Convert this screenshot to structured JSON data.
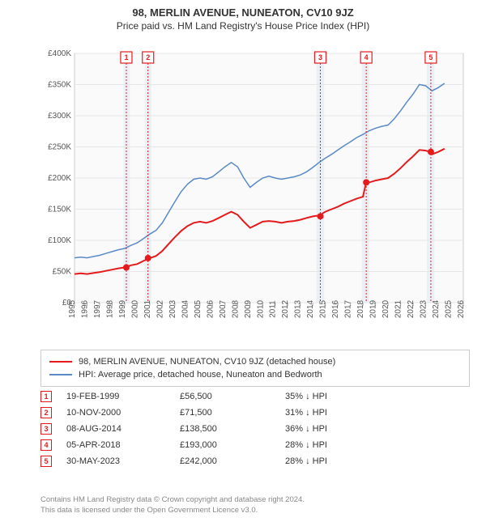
{
  "header": {
    "title": "98, MERLIN AVENUE, NUNEATON, CV10 9JZ",
    "subtitle": "Price paid vs. HM Land Registry's House Price Index (HPI)"
  },
  "chart": {
    "type": "line",
    "plot_bg": "#fafafa",
    "grid_color": "#e6e6e6",
    "axis_color": "#aaaaaa",
    "x": {
      "min": 1995,
      "max": 2026,
      "ticks": [
        1995,
        1996,
        1997,
        1998,
        1999,
        2000,
        2001,
        2002,
        2003,
        2004,
        2005,
        2006,
        2007,
        2008,
        2009,
        2010,
        2011,
        2012,
        2013,
        2014,
        2015,
        2016,
        2017,
        2018,
        2019,
        2020,
        2021,
        2022,
        2023,
        2024,
        2025,
        2026
      ]
    },
    "y": {
      "min": 0,
      "max": 400000,
      "ticks": [
        0,
        50000,
        100000,
        150000,
        200000,
        250000,
        300000,
        350000,
        400000
      ],
      "labels": [
        "£0",
        "£50K",
        "£100K",
        "£150K",
        "£200K",
        "£250K",
        "£300K",
        "£350K",
        "£400K"
      ]
    },
    "band_color": "#d9e6f2",
    "band_opacity": 0.5,
    "bands": [
      {
        "from": 1998.9,
        "to": 1999.4
      },
      {
        "from": 2000.6,
        "to": 2001.1
      },
      {
        "from": 2014.3,
        "to": 2014.9
      },
      {
        "from": 2017.9,
        "to": 2018.5
      },
      {
        "from": 2023.1,
        "to": 2023.7
      }
    ],
    "series": [
      {
        "name": "hpi",
        "label": "HPI: Average price, detached house, Nuneaton and Bedworth",
        "color": "#5a8ac6",
        "width": 1.5,
        "data": [
          [
            1995,
            72000
          ],
          [
            1995.5,
            73000
          ],
          [
            1996,
            72000
          ],
          [
            1996.5,
            74000
          ],
          [
            1997,
            76000
          ],
          [
            1997.5,
            79000
          ],
          [
            1998,
            82000
          ],
          [
            1998.5,
            85000
          ],
          [
            1999,
            87000
          ],
          [
            1999.5,
            92000
          ],
          [
            2000,
            96000
          ],
          [
            2000.5,
            103000
          ],
          [
            2001,
            110000
          ],
          [
            2001.5,
            116000
          ],
          [
            2002,
            128000
          ],
          [
            2002.5,
            145000
          ],
          [
            2003,
            162000
          ],
          [
            2003.5,
            178000
          ],
          [
            2004,
            190000
          ],
          [
            2004.5,
            198000
          ],
          [
            2005,
            200000
          ],
          [
            2005.5,
            198000
          ],
          [
            2006,
            202000
          ],
          [
            2006.5,
            210000
          ],
          [
            2007,
            218000
          ],
          [
            2007.5,
            225000
          ],
          [
            2008,
            218000
          ],
          [
            2008.5,
            200000
          ],
          [
            2009,
            185000
          ],
          [
            2009.5,
            193000
          ],
          [
            2010,
            200000
          ],
          [
            2010.5,
            203000
          ],
          [
            2011,
            200000
          ],
          [
            2011.5,
            198000
          ],
          [
            2012,
            200000
          ],
          [
            2012.5,
            202000
          ],
          [
            2013,
            205000
          ],
          [
            2013.5,
            210000
          ],
          [
            2014,
            217000
          ],
          [
            2014.5,
            225000
          ],
          [
            2015,
            232000
          ],
          [
            2015.5,
            238000
          ],
          [
            2016,
            245000
          ],
          [
            2016.5,
            252000
          ],
          [
            2017,
            258000
          ],
          [
            2017.5,
            265000
          ],
          [
            2018,
            270000
          ],
          [
            2018.5,
            276000
          ],
          [
            2019,
            280000
          ],
          [
            2019.5,
            283000
          ],
          [
            2020,
            285000
          ],
          [
            2020.5,
            295000
          ],
          [
            2021,
            308000
          ],
          [
            2021.5,
            322000
          ],
          [
            2022,
            335000
          ],
          [
            2022.5,
            350000
          ],
          [
            2023,
            348000
          ],
          [
            2023.5,
            340000
          ],
          [
            2024,
            345000
          ],
          [
            2024.5,
            352000
          ]
        ]
      },
      {
        "name": "price",
        "label": "98, MERLIN AVENUE, NUNEATON, CV10 9JZ (detached house)",
        "color": "#e41a1c",
        "width": 2,
        "data": [
          [
            1995,
            46000
          ],
          [
            1995.5,
            47000
          ],
          [
            1996,
            46000
          ],
          [
            1996.5,
            47500
          ],
          [
            1997,
            49000
          ],
          [
            1997.5,
            51000
          ],
          [
            1998,
            53000
          ],
          [
            1998.5,
            55000
          ],
          [
            1999,
            56500
          ],
          [
            1999.5,
            60000
          ],
          [
            2000,
            62000
          ],
          [
            2000.5,
            67000
          ],
          [
            2001,
            71500
          ],
          [
            2001.5,
            75000
          ],
          [
            2002,
            83000
          ],
          [
            2002.5,
            94000
          ],
          [
            2003,
            105000
          ],
          [
            2003.5,
            115000
          ],
          [
            2004,
            123000
          ],
          [
            2004.5,
            128000
          ],
          [
            2005,
            130000
          ],
          [
            2005.5,
            128000
          ],
          [
            2006,
            131000
          ],
          [
            2006.5,
            136000
          ],
          [
            2007,
            141000
          ],
          [
            2007.5,
            146000
          ],
          [
            2008,
            141000
          ],
          [
            2008.5,
            130000
          ],
          [
            2009,
            120000
          ],
          [
            2009.5,
            125000
          ],
          [
            2010,
            130000
          ],
          [
            2010.5,
            131000
          ],
          [
            2011,
            130000
          ],
          [
            2011.5,
            128000
          ],
          [
            2012,
            130000
          ],
          [
            2012.5,
            131000
          ],
          [
            2013,
            133000
          ],
          [
            2013.5,
            136000
          ],
          [
            2014,
            138500
          ],
          [
            2014.5,
            140000
          ],
          [
            2015,
            146000
          ],
          [
            2015.5,
            150000
          ],
          [
            2016,
            154000
          ],
          [
            2016.5,
            159000
          ],
          [
            2017,
            163000
          ],
          [
            2017.5,
            167000
          ],
          [
            2018,
            170000
          ],
          [
            2018.25,
            193000
          ],
          [
            2018.5,
            193000
          ],
          [
            2019,
            196000
          ],
          [
            2019.5,
            198000
          ],
          [
            2020,
            200000
          ],
          [
            2020.5,
            207000
          ],
          [
            2021,
            216000
          ],
          [
            2021.5,
            226000
          ],
          [
            2022,
            235000
          ],
          [
            2022.5,
            245000
          ],
          [
            2023,
            244000
          ],
          [
            2023.4,
            242000
          ],
          [
            2023.5,
            238000
          ],
          [
            2024,
            242000
          ],
          [
            2024.5,
            247000
          ]
        ]
      }
    ],
    "markers": [
      {
        "n": 1,
        "x": 1999.13,
        "y": 56500
      },
      {
        "n": 2,
        "x": 2000.86,
        "y": 71500
      },
      {
        "n": 3,
        "x": 2014.6,
        "y": 138500
      },
      {
        "n": 4,
        "x": 2018.26,
        "y": 193000
      },
      {
        "n": 5,
        "x": 2023.41,
        "y": 242000
      }
    ],
    "marker_color": "#e41a1c"
  },
  "legend": {
    "rows": [
      {
        "color": "#e41a1c",
        "label": "98, MERLIN AVENUE, NUNEATON, CV10 9JZ (detached house)"
      },
      {
        "color": "#5a8ac6",
        "label": "HPI: Average price, detached house, Nuneaton and Bedworth"
      }
    ]
  },
  "transactions": {
    "rows": [
      {
        "n": 1,
        "date": "19-FEB-1999",
        "price": "£56,500",
        "diff": "35% ↓ HPI"
      },
      {
        "n": 2,
        "date": "10-NOV-2000",
        "price": "£71,500",
        "diff": "31% ↓ HPI"
      },
      {
        "n": 3,
        "date": "08-AUG-2014",
        "price": "£138,500",
        "diff": "36% ↓ HPI"
      },
      {
        "n": 4,
        "date": "05-APR-2018",
        "price": "£193,000",
        "diff": "28% ↓ HPI"
      },
      {
        "n": 5,
        "date": "30-MAY-2023",
        "price": "£242,000",
        "diff": "28% ↓ HPI"
      }
    ]
  },
  "footer": {
    "line1": "Contains HM Land Registry data © Crown copyright and database right 2024.",
    "line2": "This data is licensed under the Open Government Licence v3.0."
  }
}
